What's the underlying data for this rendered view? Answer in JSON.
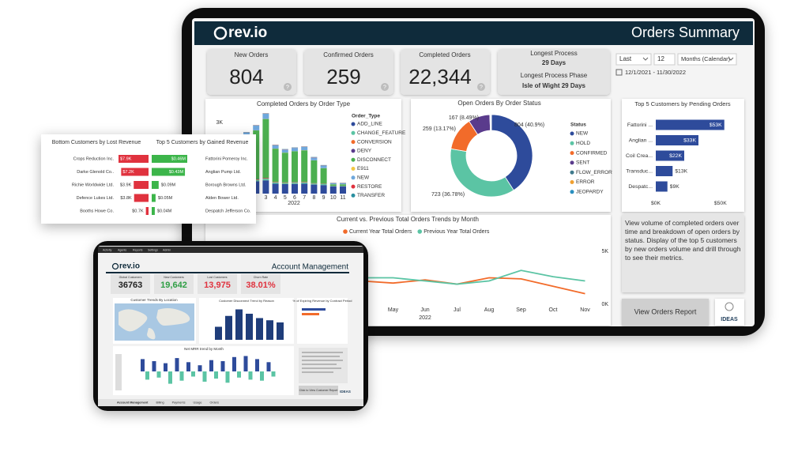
{
  "orders_dashboard": {
    "logo": "rev.io",
    "title": "Orders Summary",
    "kpis": [
      {
        "label": "New Orders",
        "value": "804"
      },
      {
        "label": "Confirmed Orders",
        "value": "259"
      },
      {
        "label": "Completed Orders",
        "value": "22,344"
      }
    ],
    "help_icon": "?",
    "longest_process": {
      "label": "Longest Process",
      "value": "29 Days",
      "phase_label": "Longest Process Phase",
      "phase_value": "Isle of Wight 29 Days"
    },
    "filters": {
      "period": "Last",
      "count": "12",
      "unit": "Months (Calendar)",
      "date_range": "12/1/2021 - 11/30/2022"
    },
    "description": "View volume of completed orders over time and breakdown of open orders by status. Display of the top 5 customers by new orders volume and drill through to see their metrics.",
    "button": "View Orders Report",
    "ideas_logo": "IDEAS"
  },
  "chart_data": [
    {
      "type": "stacked-bar",
      "title": "Completed Orders by Order Type",
      "legend_title": "Order_Type",
      "x_label": "2022",
      "categories": [
        null,
        null,
        "3",
        "4",
        "5",
        "6",
        "7",
        "8",
        "9",
        "10",
        "11"
      ],
      "ylim": [
        0,
        3500
      ],
      "yticks": [
        {
          "value": 3000,
          "label": "3K"
        }
      ],
      "series": [
        {
          "name": "ADD_LINE",
          "color": "#2e4b9b",
          "values": [
            500,
            520,
            560,
            420,
            400,
            410,
            420,
            380,
            360,
            300,
            300
          ]
        },
        {
          "name": "CHANGE_FEATURE",
          "color": "#5bc4a4",
          "values": [
            60,
            60,
            70,
            50,
            50,
            50,
            50,
            40,
            40,
            20,
            20
          ]
        },
        {
          "name": "CONVERSION",
          "color": "#f26b2a",
          "values": [
            20,
            20,
            20,
            15,
            15,
            15,
            15,
            10,
            10,
            5,
            5
          ]
        },
        {
          "name": "DENY",
          "color": "#5a3b8c",
          "values": [
            15,
            15,
            15,
            10,
            10,
            10,
            10,
            10,
            10,
            5,
            5
          ]
        },
        {
          "name": "DISCONNECT",
          "color": "#4caf50",
          "values": [
            1800,
            2050,
            2480,
            1400,
            1250,
            1300,
            1330,
            960,
            650,
            60,
            60
          ]
        },
        {
          "name": "E911",
          "color": "#f2c744",
          "values": [
            5,
            5,
            5,
            5,
            5,
            5,
            5,
            5,
            5,
            5,
            5
          ]
        },
        {
          "name": "NEW",
          "color": "#6fa8dc",
          "values": [
            180,
            200,
            220,
            140,
            130,
            140,
            140,
            120,
            110,
            40,
            40
          ]
        },
        {
          "name": "RESTORE",
          "color": "#e0323e",
          "values": [
            10,
            10,
            10,
            10,
            10,
            10,
            10,
            10,
            10,
            10,
            10
          ]
        },
        {
          "name": "TRANSFER",
          "color": "#2a8fa0",
          "values": [
            10,
            10,
            10,
            10,
            10,
            10,
            10,
            10,
            10,
            10,
            10
          ]
        }
      ]
    },
    {
      "type": "donut",
      "title": "Open Orders By Order Status",
      "legend_title": "Status",
      "categories": [
        "NEW",
        "HOLD",
        "CONFIRMED",
        "SENT",
        "FLOW_ERROR",
        "ERROR",
        "JEOPARDY"
      ],
      "values": [
        804,
        723,
        259,
        167,
        5,
        4,
        4
      ],
      "value_labels": [
        "804 (40.9%)",
        "723 (36.78%)",
        "259 (13.17%)",
        "167 (8.49%)",
        null,
        null,
        null
      ],
      "colors": [
        "#2e4b9b",
        "#5bc4a4",
        "#f26b2a",
        "#5a3b8c",
        "#3f7a8c",
        "#f0a030",
        "#2a8fbf"
      ]
    },
    {
      "type": "hbar",
      "title": "Top 5 Customers by Pending Orders",
      "color": "#2e4b9b",
      "categories": [
        "Fattorini ...",
        "Anglian ...",
        "Coil Crea...",
        "Transduc...",
        "Despatc..."
      ],
      "values": [
        53000,
        33000,
        22000,
        13000,
        9000
      ],
      "value_labels": [
        "$53K",
        "$33K",
        "$22K",
        "$13K",
        "$9K"
      ],
      "xlim": [
        0,
        55000
      ],
      "xticks": [
        {
          "value": 0,
          "label": "$0K"
        },
        {
          "value": 50000,
          "label": "$50K"
        }
      ]
    },
    {
      "type": "line",
      "title": "Current vs. Previous Total Orders Trends by Month",
      "x_label": "2022",
      "categories": [
        null,
        null,
        null,
        null,
        null,
        "May",
        "Jun",
        "Jul",
        "Aug",
        "Sep",
        "Oct",
        "Nov"
      ],
      "ylim": [
        0,
        5000
      ],
      "yticks": [
        {
          "value": 0,
          "label": "0K"
        },
        {
          "value": 5000,
          "label": "5K"
        }
      ],
      "series": [
        {
          "name": "Current Year Total Orders",
          "color": "#f26b2a",
          "values": [
            2500,
            2400,
            2600,
            2300,
            2200,
            2000,
            2300,
            1900,
            2500,
            2400,
            1700,
            1000
          ]
        },
        {
          "name": "Previous Year Total Orders",
          "color": "#5bc4a4",
          "values": [
            2600,
            2500,
            2700,
            2400,
            2500,
            2500,
            2200,
            1900,
            2200,
            3200,
            2600,
            2200
          ]
        }
      ]
    },
    {
      "type": "lost-bar",
      "title": "Bottom Customers by Lost Revenue",
      "color": "#e0323e",
      "categories": [
        "Crops Reduction Inc.",
        "Darke Glenold Co..",
        "Richie Worldwide Ltd.",
        "Defence Lukes Ltd.",
        "Booths Howe Co."
      ],
      "values": [
        7.9,
        7.2,
        3.9,
        3.8,
        0.7
      ],
      "value_labels": [
        "$7.9K",
        "$7.2K",
        "$3.9K",
        "$3.8K",
        "$0.7K"
      ]
    },
    {
      "type": "gain-bar",
      "title": "Top 5 Customers by Gained Revenue",
      "color": "#3cb54a",
      "categories": [
        "Fattorini Pomeroy Inc.",
        "Anglian Pump Ltd.",
        "Borough Browns Ltd.",
        "Alden Bower Ltd.",
        "Despatch Jefferson Co."
      ],
      "values": [
        0.46,
        0.43,
        0.09,
        0.05,
        0.04
      ],
      "value_labels": [
        "$0.46M",
        "$0.43M",
        "$0.09M",
        "$0.05M",
        "$0.04M"
      ]
    },
    {
      "type": "mrr-bar",
      "title": "Net MRR trend by Month",
      "series": [
        {
          "color": "#2e4b9b",
          "values": [
            12,
            10,
            8,
            13,
            9,
            6,
            11,
            10,
            14,
            15,
            12,
            9
          ]
        },
        {
          "color": "#5bc4a4",
          "values": [
            -8,
            -6,
            -12,
            -9,
            -5,
            -10,
            -7,
            -11,
            -6,
            -8,
            -9,
            -5
          ]
        }
      ]
    },
    {
      "type": "mini-bar",
      "title": "Customer Disconnect Trend by Reason",
      "color": "#1f3d7a",
      "values": [
        30,
        55,
        70,
        60,
        50,
        45,
        40
      ]
    }
  ],
  "account_tablet": {
    "nav": [
      "Activity",
      "Agents",
      "Reports",
      "Settings",
      "Admin"
    ],
    "logo": "rev.io",
    "title": "Account Management",
    "kpis": [
      {
        "label": "Global Customers",
        "value": "36763",
        "color": "#222222"
      },
      {
        "label": "New Customers",
        "value": "19,642",
        "color": "#2e9e44"
      },
      {
        "label": "Lost Customers",
        "value": "13,975",
        "color": "#e0323e"
      },
      {
        "label": "Churn Rate",
        "value": "38.01%",
        "color": "#e0323e"
      }
    ],
    "map_title": "Customer Trends By Location",
    "expiring_title": "% of Expiring Revenue by Contract Period",
    "button": "Click to View Customer Report",
    "ideas_logo": "IDEAS",
    "tabs": [
      "Account Management",
      "Billing",
      "Payments",
      "Usage",
      "Orders"
    ]
  }
}
